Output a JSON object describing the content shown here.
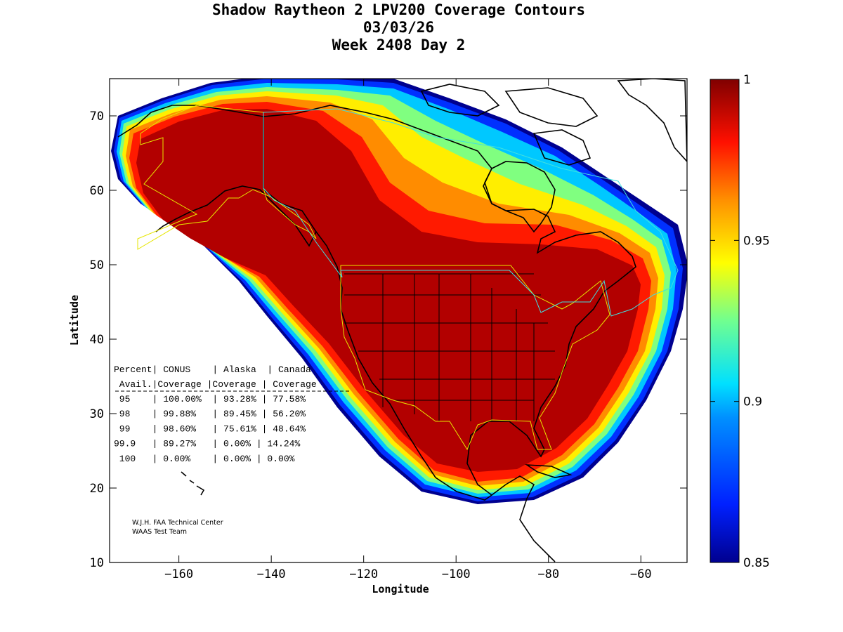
{
  "title": {
    "line1": "Shadow Raytheon 2 LPV200 Coverage Contours",
    "line2": "03/03/26",
    "line3": "Week 2408 Day 2"
  },
  "colors": {
    "dark_red": "#b20000",
    "red": "#ff1a00",
    "orange": "#ff8c00",
    "yellow": "#ffee00",
    "cyan": "#00d8ff",
    "blue": "#0050ff",
    "navy": "#00008f",
    "border_yellow": "#e6e600",
    "border_cyan": "#40e0e0"
  },
  "chart_data": {
    "type": "contour-map",
    "title": "Shadow Raytheon 2 LPV200 Coverage Contours",
    "xlabel": "Longitude",
    "ylabel": "Latitude",
    "xlim": [
      -175,
      -50
    ],
    "ylim": [
      10,
      75
    ],
    "xticks": [
      -160,
      -140,
      -120,
      -100,
      -80,
      -60
    ],
    "yticks": [
      10,
      20,
      30,
      40,
      50,
      60,
      70
    ],
    "colorbar": {
      "min": 0.85,
      "max": 1,
      "ticks": [
        0.85,
        0.9,
        0.95,
        1
      ],
      "tick_labels": [
        "0.85",
        "0.9",
        "0.95",
        "1"
      ]
    },
    "table": {
      "header1": [
        "Percent",
        "CONUS",
        "Alaska",
        "Canada"
      ],
      "header2": [
        "Avail.",
        "Coverage",
        "Coverage",
        "Coverage"
      ],
      "rows": [
        {
          "avail": "95",
          "conus": "100.00%",
          "alaska": "93.28%",
          "canada": "77.58%"
        },
        {
          "avail": "98",
          "conus": "99.88%",
          "alaska": "89.45%",
          "canada": "56.20%"
        },
        {
          "avail": "99",
          "conus": "98.60%",
          "alaska": "75.61%",
          "canada": "48.64%"
        },
        {
          "avail": "99.9",
          "conus": "89.27%",
          "alaska": "0.00%",
          "canada": "14.24%"
        },
        {
          "avail": "100",
          "conus": "0.00%",
          "alaska": "0.00%",
          "canada": "0.00%"
        }
      ]
    },
    "credit": [
      "W.J.H. FAA Technical Center",
      "WAAS Test Team"
    ]
  }
}
